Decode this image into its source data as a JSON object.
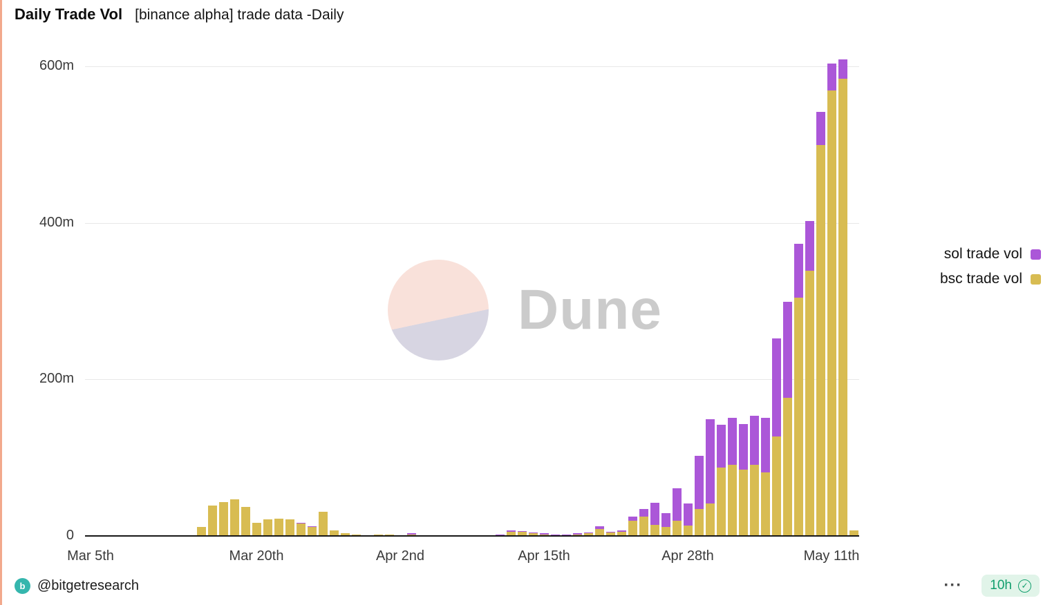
{
  "header": {
    "title": "Daily Trade Vol",
    "subtitle": "[binance alpha] trade data -Daily"
  },
  "watermark": {
    "text": "Dune"
  },
  "legend": {
    "items": [
      {
        "label": "sol trade vol",
        "color": "#ab57d8"
      },
      {
        "label": "bsc trade vol",
        "color": "#d8bc52"
      }
    ]
  },
  "footer": {
    "handle": "@bitgetresearch",
    "updated": "10h"
  },
  "icons": {
    "bitget": "b",
    "check": "✓",
    "menu": "···"
  },
  "chart_data": {
    "type": "bar",
    "stacked": true,
    "title": "Daily Trade Vol [binance alpha] trade data -Daily",
    "xlabel": "",
    "ylabel": "",
    "units": "m = millions (trade volume)",
    "grid": true,
    "legend_position": "right",
    "ylim": [
      0,
      620
    ],
    "y_ticks": [
      "0",
      "200m",
      "400m",
      "600m"
    ],
    "y_tick_values": [
      0,
      200,
      400,
      600
    ],
    "x_ticks": [
      {
        "label": "Mar 5th",
        "index": 0
      },
      {
        "label": "Mar 20th",
        "index": 15
      },
      {
        "label": "Apr 2nd",
        "index": 28
      },
      {
        "label": "Apr 15th",
        "index": 41
      },
      {
        "label": "Apr 28th",
        "index": 54
      },
      {
        "label": "May 11th",
        "index": 67
      }
    ],
    "categories": [
      "Mar 5",
      "Mar 6",
      "Mar 7",
      "Mar 8",
      "Mar 9",
      "Mar 10",
      "Mar 11",
      "Mar 12",
      "Mar 13",
      "Mar 14",
      "Mar 15",
      "Mar 16",
      "Mar 17",
      "Mar 18",
      "Mar 19",
      "Mar 20",
      "Mar 21",
      "Mar 22",
      "Mar 23",
      "Mar 24",
      "Mar 25",
      "Mar 26",
      "Mar 27",
      "Mar 28",
      "Mar 29",
      "Mar 30",
      "Mar 31",
      "Apr 1",
      "Apr 2",
      "Apr 3",
      "Apr 4",
      "Apr 5",
      "Apr 6",
      "Apr 7",
      "Apr 8",
      "Apr 9",
      "Apr 10",
      "Apr 11",
      "Apr 12",
      "Apr 13",
      "Apr 14",
      "Apr 15",
      "Apr 16",
      "Apr 17",
      "Apr 18",
      "Apr 19",
      "Apr 20",
      "Apr 21",
      "Apr 22",
      "Apr 23",
      "Apr 24",
      "Apr 25",
      "Apr 26",
      "Apr 27",
      "Apr 28",
      "Apr 29",
      "Apr 30",
      "May 1",
      "May 2",
      "May 3",
      "May 4",
      "May 5",
      "May 6",
      "May 7",
      "May 8",
      "May 9",
      "May 10",
      "May 11",
      "May 12",
      "May 13"
    ],
    "series": [
      {
        "name": "bsc trade vol",
        "color": "#d8bc52",
        "values": [
          0,
          0,
          0,
          0,
          0,
          0,
          0,
          0,
          0,
          0,
          12,
          40,
          44,
          48,
          38,
          18,
          22,
          23,
          22,
          17,
          12,
          32,
          8,
          4,
          3,
          2,
          3,
          3,
          2,
          3,
          2,
          1,
          1,
          1,
          1,
          1,
          2,
          2,
          6,
          6,
          4,
          3,
          2,
          2,
          3,
          4,
          10,
          5,
          6,
          20,
          26,
          15,
          12,
          20,
          14,
          35,
          42,
          88,
          92,
          86,
          92,
          82,
          128,
          177,
          305,
          340,
          500,
          570,
          585,
          8
        ]
      },
      {
        "name": "sol trade vol",
        "color": "#ab57d8",
        "values": [
          0,
          0,
          0,
          0,
          0,
          0,
          0,
          0,
          0,
          0,
          0,
          0,
          0,
          0,
          0,
          0,
          0,
          0,
          0,
          1,
          1,
          0,
          0,
          0,
          0,
          0,
          0,
          0,
          0,
          1,
          0,
          0,
          0,
          0,
          0,
          0,
          0,
          1,
          2,
          1,
          1,
          1,
          1,
          1,
          1,
          1,
          3,
          1,
          2,
          6,
          9,
          28,
          18,
          42,
          28,
          68,
          108,
          55,
          60,
          58,
          62,
          70,
          125,
          123,
          69,
          63,
          43,
          34,
          25,
          0
        ]
      }
    ]
  }
}
